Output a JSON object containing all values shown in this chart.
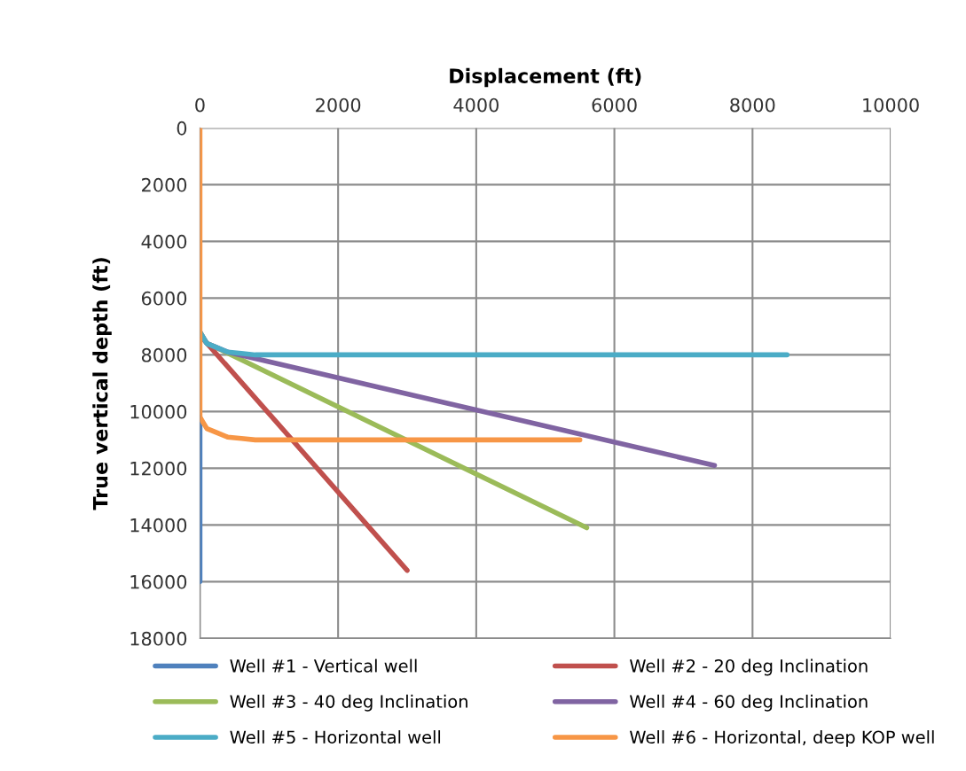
{
  "chart_data": {
    "type": "line",
    "xlabel": "Displacement (ft)",
    "ylabel": "True vertical depth (ft)",
    "xlim": [
      0,
      10000
    ],
    "xticks": [
      0,
      2000,
      4000,
      6000,
      8000,
      10000
    ],
    "ylim": [
      18000,
      0
    ],
    "yticks": [
      0,
      2000,
      4000,
      6000,
      8000,
      10000,
      12000,
      14000,
      16000,
      18000
    ],
    "grid": true,
    "legend": "bottom",
    "marker": "none",
    "line_style": "solid",
    "series": [
      {
        "name": "Well #1 - Vertical well",
        "color": "#4f81bd",
        "x": [
          0,
          0
        ],
        "values": [
          10200,
          16000
        ]
      },
      {
        "name": "Well #2 - 20 deg Inclination",
        "color": "#c0504d",
        "x": [
          0,
          50,
          3000
        ],
        "values": [
          7200,
          7450,
          15600
        ]
      },
      {
        "name": "Well #3 - 40 deg Inclination",
        "color": "#9bbb59",
        "x": [
          0,
          100,
          200,
          5600
        ],
        "values": [
          7200,
          7600,
          7700,
          14100
        ]
      },
      {
        "name": "Well #4 - 60 deg Inclination",
        "color": "#8064a2",
        "x": [
          0,
          100,
          250,
          400,
          7450
        ],
        "values": [
          7200,
          7600,
          7750,
          7900,
          11900
        ]
      },
      {
        "name": "Well #5 - Horizontal well",
        "color": "#4bacc6",
        "x": [
          0,
          100,
          250,
          400,
          600,
          800,
          8500
        ],
        "values": [
          7200,
          7600,
          7750,
          7900,
          7950,
          8000,
          8000
        ]
      },
      {
        "name": "Well #6 - Horizontal, deep KOP well",
        "color": "#f79646",
        "x": [
          0,
          0,
          100,
          250,
          400,
          600,
          800,
          5500
        ],
        "values": [
          0,
          10200,
          10600,
          10750,
          10900,
          10950,
          11000,
          11000
        ]
      }
    ]
  }
}
